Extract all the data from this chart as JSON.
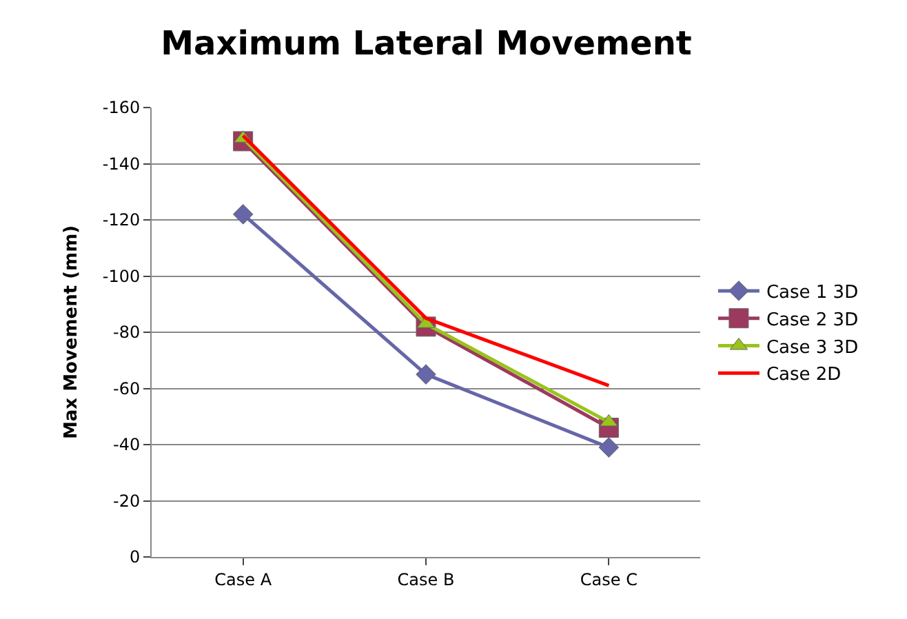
{
  "chart_data": {
    "type": "line",
    "title": "Maximum Lateral Movement",
    "ylabel": "Max Movement (mm)",
    "categories": [
      "Case A",
      "Case B",
      "Case C"
    ],
    "series": [
      {
        "name": "Case 1 3D",
        "color": "#6666a8",
        "marker": "diamond",
        "values": [
          -122,
          -65,
          -39
        ]
      },
      {
        "name": "Case 2 3D",
        "color": "#9b3a5e",
        "marker": "square",
        "values": [
          -148,
          -82,
          -46
        ]
      },
      {
        "name": "Case 3 3D",
        "color": "#9ac31c",
        "marker": "triangle",
        "values": [
          -149,
          -83,
          -48
        ]
      },
      {
        "name": "Case 2D",
        "color": "#ff0000",
        "marker": "none",
        "values": [
          -150,
          -85,
          -61
        ]
      }
    ],
    "ylim": [
      0,
      -160
    ],
    "yticks": [
      0,
      -20,
      -40,
      -60,
      -80,
      -100,
      -120,
      -140,
      -160
    ],
    "grid": "y",
    "legend": "right"
  }
}
